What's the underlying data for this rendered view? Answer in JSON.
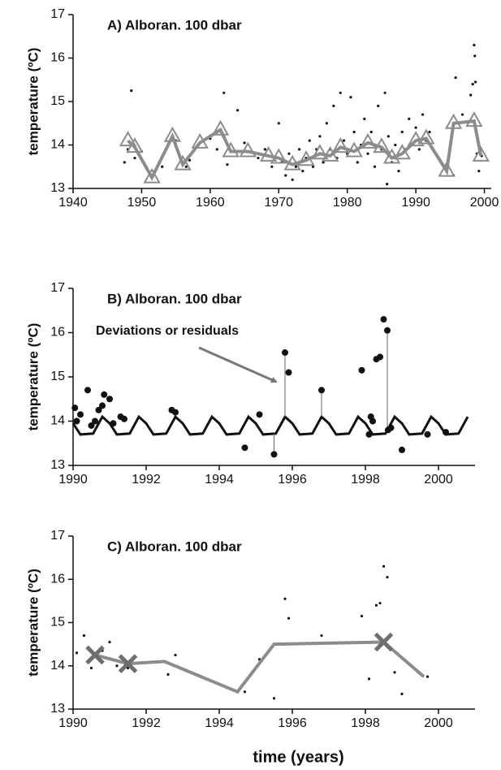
{
  "chart_data": [
    {
      "type": "line",
      "title": "A) Alboran. 100 dbar",
      "ylabel": "temperature (ºC)",
      "xlim": [
        1940,
        2001
      ],
      "xticks": [
        1940,
        1950,
        1960,
        1970,
        1980,
        1990,
        2000
      ],
      "ylim": [
        13,
        17
      ],
      "yticks": [
        13,
        14,
        15,
        16,
        17
      ],
      "series": [
        {
          "type": "scatter",
          "color": "#111111",
          "x": [
            1947.5,
            1948,
            1948.5,
            1949,
            1950,
            1953,
            1955,
            1956.5,
            1957,
            1958,
            1960,
            1961,
            1962,
            1962.5,
            1964,
            1965,
            1967,
            1968,
            1969,
            1970,
            1970.5,
            1971,
            1971.5,
            1972,
            1972.5,
            1973,
            1973.5,
            1974,
            1974.5,
            1975,
            1975.5,
            1976,
            1976.5,
            1977,
            1977.5,
            1978,
            1978.5,
            1979,
            1979.5,
            1980,
            1980.5,
            1981,
            1981.5,
            1982,
            1982.5,
            1983,
            1983.5,
            1984,
            1984.5,
            1985,
            1985.5,
            1985.8,
            1986,
            1986.5,
            1987,
            1987.5,
            1988,
            1988.5,
            1989,
            1989.5,
            1990,
            1990.5,
            1991,
            1991.5,
            1992,
            1994.5,
            1995.5,
            1995.8,
            1996.8,
            1998,
            1998.3,
            1998.5,
            1998.6,
            1998.7,
            1998.9,
            1999.2,
            1999.6
          ],
          "values": [
            13.6,
            13.9,
            15.25,
            13.7,
            13.85,
            13.5,
            14.1,
            13.5,
            13.65,
            13.95,
            14.15,
            13.9,
            15.2,
            13.55,
            14.8,
            14.05,
            13.7,
            13.9,
            13.5,
            14.5,
            13.6,
            13.3,
            13.8,
            13.2,
            13.5,
            13.9,
            13.4,
            13.7,
            14.1,
            13.5,
            13.9,
            14.2,
            13.6,
            14.5,
            13.9,
            14.9,
            13.7,
            15.2,
            14.1,
            13.8,
            15.1,
            14.3,
            13.6,
            14.0,
            14.6,
            13.8,
            14.3,
            13.5,
            14.9,
            13.9,
            15.2,
            13.1,
            14.2,
            13.6,
            14.0,
            13.4,
            14.3,
            13.9,
            14.6,
            14.0,
            14.4,
            13.9,
            14.7,
            14.1,
            14.3,
            13.4,
            13.3,
            15.55,
            14.7,
            15.15,
            15.4,
            16.3,
            16.05,
            15.45,
            13.8,
            13.4,
            13.75
          ]
        },
        {
          "type": "line",
          "color": "#8c8c8c",
          "marker": "triangle",
          "x": [
            1948,
            1949,
            1951.5,
            1954.5,
            1956,
            1958.5,
            1961.5,
            1963,
            1965.5,
            1968.5,
            1970,
            1972,
            1974,
            1976,
            1977.5,
            1979,
            1981,
            1983,
            1985,
            1986.5,
            1988,
            1990,
            1991.5,
            1994.5,
            1995.5,
            1998.5,
            1999.5
          ],
          "values": [
            14.1,
            13.95,
            13.25,
            14.2,
            13.55,
            14.05,
            14.35,
            13.85,
            13.85,
            13.75,
            13.7,
            13.55,
            13.65,
            13.8,
            13.75,
            13.95,
            13.85,
            14.05,
            13.95,
            13.7,
            13.8,
            14.1,
            14.15,
            13.4,
            14.5,
            14.55,
            13.75
          ]
        }
      ]
    },
    {
      "type": "line",
      "title": "B) Alboran. 100 dbar",
      "ylabel": "temperature (ºC)",
      "annotation": "Deviations or residuals",
      "xlim": [
        1990,
        2001
      ],
      "xticks": [
        1990,
        1992,
        1994,
        1996,
        1998,
        2000
      ],
      "ylim": [
        13,
        17
      ],
      "yticks": [
        13,
        14,
        15,
        16,
        17
      ],
      "series": [
        {
          "type": "line",
          "color": "#111111",
          "x": [
            1990,
            1990.2,
            1990.55,
            1990.8,
            1991,
            1991.2,
            1991.55,
            1991.8,
            1992,
            1992.2,
            1992.55,
            1992.8,
            1993,
            1993.2,
            1993.55,
            1993.8,
            1994,
            1994.2,
            1994.55,
            1994.8,
            1995,
            1995.2,
            1995.55,
            1995.8,
            1996,
            1996.2,
            1996.55,
            1996.8,
            1997,
            1997.2,
            1997.55,
            1997.8,
            1998,
            1998.2,
            1998.55,
            1998.8,
            1999,
            1999.2,
            1999.55,
            1999.8,
            2000,
            2000.2,
            2000.55,
            2000.8
          ],
          "values": [
            13.95,
            13.7,
            13.72,
            14.1,
            13.95,
            13.7,
            13.72,
            14.1,
            13.95,
            13.7,
            13.72,
            14.1,
            13.95,
            13.7,
            13.72,
            14.1,
            13.95,
            13.7,
            13.72,
            14.1,
            13.95,
            13.7,
            13.72,
            14.1,
            13.95,
            13.7,
            13.72,
            14.1,
            13.95,
            13.7,
            13.72,
            14.1,
            13.95,
            13.7,
            13.72,
            14.1,
            13.95,
            13.7,
            13.72,
            14.1,
            13.95,
            13.7,
            13.72,
            14.1
          ]
        },
        {
          "type": "residual",
          "color": "#666666",
          "x": [
            1995.5,
            1995.8,
            1996.8,
            1998.6
          ],
          "values": [
            13.25,
            15.55,
            14.7,
            16.05
          ],
          "base": [
            13.72,
            14.1,
            14.1,
            13.75
          ]
        },
        {
          "type": "scatter",
          "color": "#111111",
          "size": "large",
          "x": [
            1990.05,
            1990.1,
            1990.2,
            1990.4,
            1990.5,
            1990.6,
            1990.7,
            1990.8,
            1990.85,
            1991,
            1991.1,
            1991.3,
            1991.4,
            1992.7,
            1992.8,
            1994.7,
            1995.1,
            1995.5,
            1995.8,
            1995.9,
            1996.8,
            1997.9,
            1998.1,
            1998.15,
            1998.2,
            1998.3,
            1998.4,
            1998.5,
            1998.6,
            1998.62,
            1998.7,
            1999,
            1999.7,
            2000.2
          ],
          "values": [
            14.3,
            14.0,
            14.15,
            14.7,
            13.9,
            14.0,
            14.25,
            14.35,
            14.6,
            14.5,
            13.95,
            14.1,
            14.05,
            14.25,
            14.2,
            13.4,
            14.15,
            13.25,
            15.55,
            15.1,
            14.7,
            15.15,
            13.7,
            14.1,
            14.0,
            15.4,
            15.45,
            16.3,
            16.05,
            13.8,
            13.85,
            13.35,
            13.7,
            13.75
          ]
        }
      ]
    },
    {
      "type": "line",
      "title": "C) Alboran. 100 dbar",
      "ylabel": "temperature (ºC)",
      "xlabel": "time (years)",
      "xlim": [
        1990,
        2001
      ],
      "xticks": [
        1990,
        1992,
        1994,
        1996,
        1998,
        2000
      ],
      "ylim": [
        13,
        17
      ],
      "yticks": [
        13,
        14,
        15,
        16,
        17
      ],
      "series": [
        {
          "type": "scatter",
          "color": "#111111",
          "x": [
            1990.1,
            1990.3,
            1990.5,
            1990.8,
            1991,
            1991.2,
            1991.5,
            1992.6,
            1992.8,
            1994.7,
            1995.1,
            1995.5,
            1995.8,
            1995.9,
            1996.8,
            1997.9,
            1998.1,
            1998.3,
            1998.4,
            1998.5,
            1998.6,
            1998.8,
            1999,
            1999.7
          ],
          "values": [
            14.3,
            14.7,
            13.95,
            14.35,
            14.55,
            14.0,
            13.95,
            13.8,
            14.25,
            13.4,
            14.15,
            13.25,
            15.55,
            15.1,
            14.7,
            15.15,
            13.7,
            15.4,
            15.45,
            16.3,
            16.05,
            13.85,
            13.35,
            13.75
          ]
        },
        {
          "type": "line",
          "color": "#8c8c8c",
          "x": [
            1990.6,
            1991.5,
            1992.5,
            1994.5,
            1995.5,
            1998.5,
            1999.6
          ],
          "values": [
            14.25,
            14.05,
            14.1,
            13.4,
            14.5,
            14.55,
            13.75
          ]
        },
        {
          "type": "markers",
          "color": "#6e6e6e",
          "marker": "cross",
          "x": [
            1990.6,
            1991.5,
            1998.5
          ],
          "values": [
            14.25,
            14.05,
            14.55
          ]
        }
      ]
    }
  ]
}
